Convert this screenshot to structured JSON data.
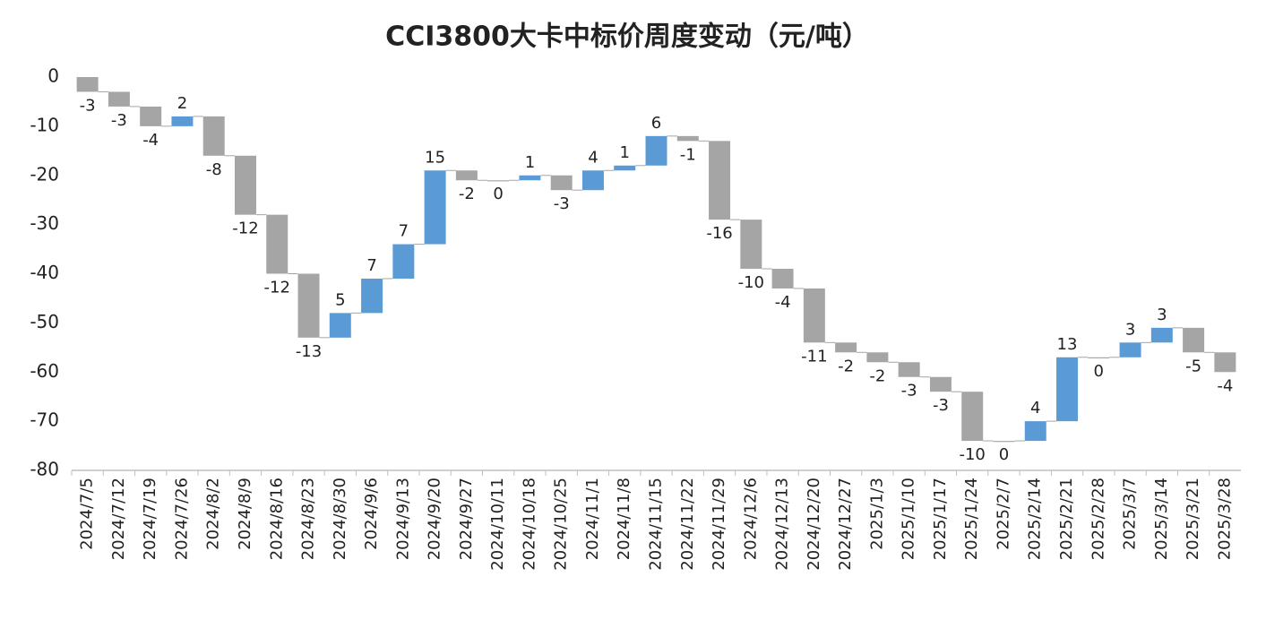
{
  "chart_data": {
    "type": "waterfall",
    "title": "CCI3800大卡中标价周度变动（元/吨）",
    "categories": [
      "2024/7/5",
      "2024/7/12",
      "2024/7/19",
      "2024/7/26",
      "2024/8/2",
      "2024/8/9",
      "2024/8/16",
      "2024/8/23",
      "2024/8/30",
      "2024/9/6",
      "2024/9/13",
      "2024/9/20",
      "2024/9/27",
      "2024/10/11",
      "2024/10/18",
      "2024/10/25",
      "2024/11/1",
      "2024/11/8",
      "2024/11/15",
      "2024/11/22",
      "2024/11/29",
      "2024/12/6",
      "2024/12/13",
      "2024/12/20",
      "2024/12/27",
      "2025/1/3",
      "2025/1/10",
      "2025/1/17",
      "2025/1/24",
      "2025/2/7",
      "2025/2/14",
      "2025/2/21",
      "2025/2/28",
      "2025/3/7",
      "2025/3/14",
      "2025/3/21",
      "2025/3/28"
    ],
    "values": [
      -3,
      -3,
      -4,
      2,
      -8,
      -12,
      -12,
      -13,
      5,
      7,
      7,
      15,
      -2,
      0,
      1,
      -3,
      4,
      1,
      6,
      -1,
      -16,
      -10,
      -4,
      -11,
      -2,
      -2,
      -3,
      -3,
      -10,
      0,
      4,
      13,
      0,
      3,
      3,
      -5,
      -4
    ],
    "increase_color": "#5b9bd5",
    "decrease_color": "#a5a5a5",
    "ylim": [
      -80,
      0
    ],
    "yticks": [
      0,
      -10,
      -20,
      -30,
      -40,
      -50,
      -60,
      -70,
      -80
    ]
  }
}
